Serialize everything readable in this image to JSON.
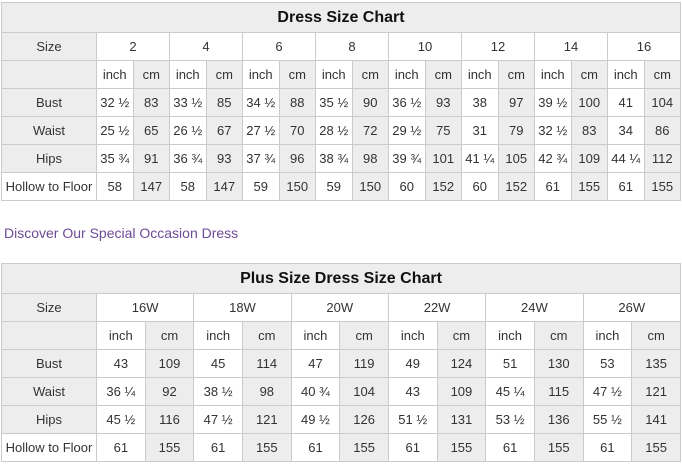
{
  "link": {
    "text": "Discover Our Special Occasion Dress",
    "color": "#6e4b96"
  },
  "colors": {
    "table_border": "#cbcbcb",
    "shaded_cell_bg": "#ededed",
    "plain_cell_bg": "#ffffff",
    "title_text": "#111111",
    "cell_text": "#333333"
  },
  "chart_data": [
    {
      "type": "table",
      "title": "Dress Size Chart",
      "size_label": "Size",
      "unit_labels": [
        "inch",
        "cm"
      ],
      "sizes": [
        "2",
        "4",
        "6",
        "8",
        "10",
        "12",
        "14",
        "16"
      ],
      "rows": [
        {
          "label": "Bust",
          "inch": [
            "32 ½",
            "33 ½",
            "34 ½",
            "35 ½",
            "36 ½",
            "38",
            "39 ½",
            "41"
          ],
          "cm": [
            "83",
            "85",
            "88",
            "90",
            "93",
            "97",
            "100",
            "104"
          ]
        },
        {
          "label": "Waist",
          "inch": [
            "25 ½",
            "26 ½",
            "27 ½",
            "28 ½",
            "29 ½",
            "31",
            "32 ½",
            "34"
          ],
          "cm": [
            "65",
            "67",
            "70",
            "72",
            "75",
            "79",
            "83",
            "86"
          ]
        },
        {
          "label": "Hips",
          "inch": [
            "35 ¾",
            "36 ¾",
            "37 ¾",
            "38 ¾",
            "39 ¾",
            "41 ¼",
            "42 ¾",
            "44 ¼"
          ],
          "cm": [
            "91",
            "93",
            "96",
            "98",
            "101",
            "105",
            "109",
            "112"
          ]
        },
        {
          "label": "Hollow to Floor",
          "inch": [
            "58",
            "58",
            "59",
            "59",
            "60",
            "60",
            "61",
            "61"
          ],
          "cm": [
            "147",
            "147",
            "150",
            "150",
            "152",
            "152",
            "155",
            "155"
          ]
        }
      ]
    },
    {
      "type": "table",
      "title": "Plus Size Dress Size Chart",
      "size_label": "Size",
      "unit_labels": [
        "inch",
        "cm"
      ],
      "sizes": [
        "16W",
        "18W",
        "20W",
        "22W",
        "24W",
        "26W"
      ],
      "rows": [
        {
          "label": "Bust",
          "inch": [
            "43",
            "45",
            "47",
            "49",
            "51",
            "53"
          ],
          "cm": [
            "109",
            "114",
            "119",
            "124",
            "130",
            "135"
          ]
        },
        {
          "label": "Waist",
          "inch": [
            "36 ¼",
            "38 ½",
            "40 ¾",
            "43",
            "45 ¼",
            "47 ½"
          ],
          "cm": [
            "92",
            "98",
            "104",
            "109",
            "115",
            "121"
          ]
        },
        {
          "label": "Hips",
          "inch": [
            "45 ½",
            "47 ½",
            "49 ½",
            "51 ½",
            "53 ½",
            "55 ½"
          ],
          "cm": [
            "116",
            "121",
            "126",
            "131",
            "136",
            "141"
          ]
        },
        {
          "label": "Hollow to Floor",
          "inch": [
            "61",
            "61",
            "61",
            "61",
            "61",
            "61"
          ],
          "cm": [
            "155",
            "155",
            "155",
            "155",
            "155",
            "155"
          ]
        }
      ]
    }
  ]
}
